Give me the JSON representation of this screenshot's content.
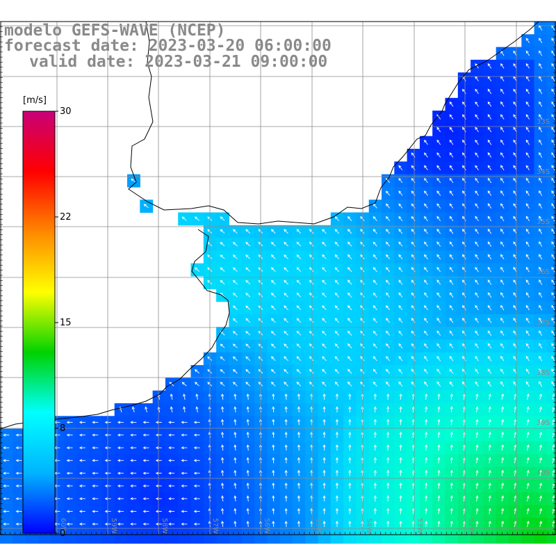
{
  "titles": {
    "model": "modelo GEFS-WAVE (NCEP)",
    "forecast": "forecast date: 2023-03-20 06:00:00",
    "valid": "valid date: 2023-03-21 09:00:00"
  },
  "colorbar": {
    "unit_label": "[m/s]",
    "ticks": [
      "30",
      "22",
      "15",
      "8",
      "0"
    ],
    "colors": [
      "#0000ff",
      "#00b4ff",
      "#00ffff",
      "#00d200",
      "#ffff00",
      "#ff8800",
      "#ff0000",
      "#c80078"
    ]
  },
  "lat_labels": [
    "33S",
    "34S",
    "35S",
    "36S",
    "37S",
    "38S",
    "39S",
    "40S"
  ],
  "lon_labels": [
    "60W",
    "59W",
    "58W",
    "57W",
    "56W",
    "55W",
    "54W",
    "53W",
    "52W"
  ],
  "colors": {
    "land": "#ffffff",
    "coast": "#000000",
    "grid": "#8c8c8c",
    "arrow": "#ffffff"
  }
}
